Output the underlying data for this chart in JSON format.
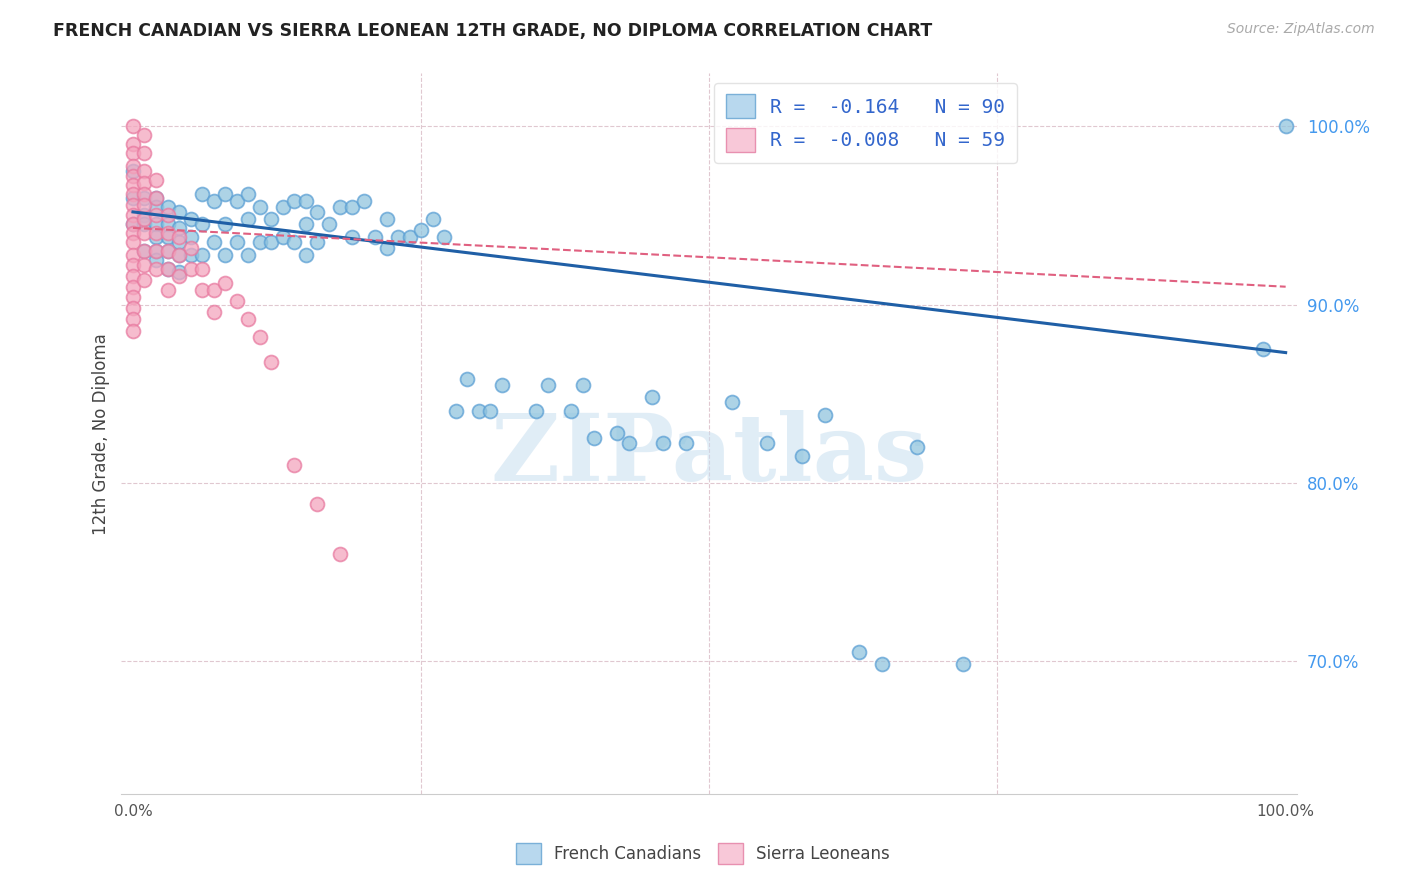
{
  "title": "FRENCH CANADIAN VS SIERRA LEONEAN 12TH GRADE, NO DIPLOMA CORRELATION CHART",
  "source": "Source: ZipAtlas.com",
  "ylabel": "12th Grade, No Diploma",
  "ytick_labels": [
    "100.0%",
    "90.0%",
    "80.0%",
    "70.0%"
  ],
  "ytick_values": [
    1.0,
    0.9,
    0.8,
    0.7
  ],
  "xlim": [
    -0.01,
    1.01
  ],
  "ylim": [
    0.625,
    1.03
  ],
  "legend_label1": "R =  -0.164   N = 90",
  "legend_label2": "R =  -0.008   N = 59",
  "blue_color": "#92c5de",
  "pink_color": "#f4a6be",
  "blue_edge": "#5b9fd4",
  "pink_edge": "#e87aa0",
  "trend_blue": "#1f5fa6",
  "trend_pink": "#e06080",
  "watermark_text": "ZIPatlas",
  "fc_x": [
    0.0,
    0.0,
    0.0,
    0.01,
    0.01,
    0.01,
    0.01,
    0.02,
    0.02,
    0.02,
    0.02,
    0.02,
    0.02,
    0.03,
    0.03,
    0.03,
    0.03,
    0.03,
    0.04,
    0.04,
    0.04,
    0.04,
    0.04,
    0.05,
    0.05,
    0.05,
    0.06,
    0.06,
    0.06,
    0.07,
    0.07,
    0.08,
    0.08,
    0.08,
    0.09,
    0.09,
    0.1,
    0.1,
    0.1,
    0.11,
    0.11,
    0.12,
    0.12,
    0.13,
    0.13,
    0.14,
    0.14,
    0.15,
    0.15,
    0.15,
    0.16,
    0.16,
    0.17,
    0.18,
    0.19,
    0.19,
    0.2,
    0.21,
    0.22,
    0.22,
    0.23,
    0.24,
    0.25,
    0.26,
    0.27,
    0.28,
    0.29,
    0.3,
    0.31,
    0.32,
    0.35,
    0.36,
    0.38,
    0.39,
    0.4,
    0.42,
    0.43,
    0.45,
    0.46,
    0.48,
    0.52,
    0.55,
    0.58,
    0.6,
    0.63,
    0.65,
    0.68,
    0.72,
    0.98,
    1.0
  ],
  "fc_y": [
    0.975,
    0.96,
    0.945,
    0.96,
    0.95,
    0.945,
    0.93,
    0.96,
    0.955,
    0.945,
    0.938,
    0.93,
    0.925,
    0.955,
    0.945,
    0.938,
    0.93,
    0.92,
    0.952,
    0.943,
    0.935,
    0.928,
    0.918,
    0.948,
    0.938,
    0.928,
    0.962,
    0.945,
    0.928,
    0.958,
    0.935,
    0.962,
    0.945,
    0.928,
    0.958,
    0.935,
    0.962,
    0.948,
    0.928,
    0.955,
    0.935,
    0.948,
    0.935,
    0.955,
    0.938,
    0.958,
    0.935,
    0.958,
    0.945,
    0.928,
    0.952,
    0.935,
    0.945,
    0.955,
    0.955,
    0.938,
    0.958,
    0.938,
    0.948,
    0.932,
    0.938,
    0.938,
    0.942,
    0.948,
    0.938,
    0.84,
    0.858,
    0.84,
    0.84,
    0.855,
    0.84,
    0.855,
    0.84,
    0.855,
    0.825,
    0.828,
    0.822,
    0.848,
    0.822,
    0.822,
    0.845,
    0.822,
    0.815,
    0.838,
    0.705,
    0.698,
    0.82,
    0.698,
    0.875,
    1.0
  ],
  "sl_x": [
    0.0,
    0.0,
    0.0,
    0.0,
    0.0,
    0.0,
    0.0,
    0.0,
    0.0,
    0.0,
    0.0,
    0.0,
    0.0,
    0.0,
    0.0,
    0.0,
    0.0,
    0.0,
    0.0,
    0.0,
    0.01,
    0.01,
    0.01,
    0.01,
    0.01,
    0.01,
    0.01,
    0.01,
    0.01,
    0.01,
    0.01,
    0.02,
    0.02,
    0.02,
    0.02,
    0.02,
    0.02,
    0.03,
    0.03,
    0.03,
    0.03,
    0.03,
    0.04,
    0.04,
    0.04,
    0.05,
    0.05,
    0.06,
    0.06,
    0.07,
    0.07,
    0.08,
    0.09,
    0.1,
    0.11,
    0.12,
    0.14,
    0.16,
    0.18
  ],
  "sl_y": [
    1.0,
    0.99,
    0.985,
    0.978,
    0.972,
    0.967,
    0.962,
    0.956,
    0.95,
    0.945,
    0.94,
    0.935,
    0.928,
    0.922,
    0.916,
    0.91,
    0.904,
    0.898,
    0.892,
    0.885,
    0.995,
    0.985,
    0.975,
    0.968,
    0.962,
    0.956,
    0.948,
    0.94,
    0.93,
    0.922,
    0.914,
    0.97,
    0.96,
    0.95,
    0.94,
    0.93,
    0.92,
    0.95,
    0.94,
    0.93,
    0.92,
    0.908,
    0.938,
    0.928,
    0.916,
    0.932,
    0.92,
    0.92,
    0.908,
    0.908,
    0.896,
    0.912,
    0.902,
    0.892,
    0.882,
    0.868,
    0.81,
    0.788,
    0.76
  ],
  "trend_blue_start_y": 0.952,
  "trend_blue_end_y": 0.873,
  "trend_pink_start_y": 0.943,
  "trend_pink_end_y": 0.91
}
